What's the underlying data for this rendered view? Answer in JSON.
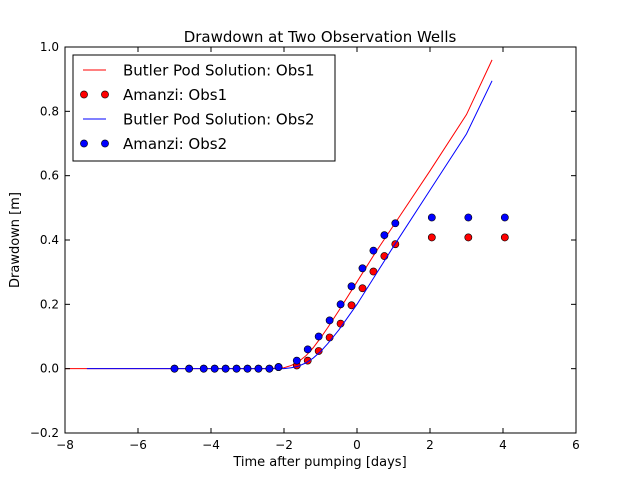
{
  "chart_data": {
    "type": "line",
    "title": "Drawdown at Two Observation Wells",
    "xlabel": "Time after pumping [days]",
    "ylabel": "Drawdown [m]",
    "xlim": [
      -8,
      6
    ],
    "ylim": [
      -0.2,
      1.0
    ],
    "x_ticks": [
      -8,
      -6,
      -4,
      -2,
      0,
      2,
      4,
      6
    ],
    "x_tick_labels": [
      "−8",
      "−6",
      "−4",
      "−2",
      "0",
      "2",
      "4",
      "6"
    ],
    "y_ticks": [
      -0.2,
      0.0,
      0.2,
      0.4,
      0.6,
      0.8,
      1.0
    ],
    "y_tick_labels": [
      "−0.2",
      "0.0",
      "0.2",
      "0.4",
      "0.6",
      "0.8",
      "1.0"
    ],
    "grid": false,
    "legend_position": "top-left",
    "series": [
      {
        "name": "Butler Pod Solution: Obs1",
        "kind": "line",
        "color": "#ff0000",
        "x": [
          -8.0,
          -4.0,
          -2.5,
          -2.0,
          -1.8,
          -1.6,
          -1.4,
          -1.2,
          -1.0,
          -0.8,
          -0.5,
          0.0,
          0.5,
          1.0,
          2.0,
          3.0,
          3.7
        ],
        "y": [
          0.0,
          0.0,
          0.0,
          0.003,
          0.01,
          0.022,
          0.04,
          0.065,
          0.095,
          0.128,
          0.18,
          0.27,
          0.36,
          0.445,
          0.615,
          0.79,
          0.96
        ]
      },
      {
        "name": "Amanzi: Obs1",
        "kind": "scatter",
        "color": "#ff0000",
        "x": [
          -5.0,
          -4.6,
          -4.2,
          -3.9,
          -3.6,
          -3.3,
          -3.0,
          -2.7,
          -2.4,
          -2.15,
          -1.65,
          -1.35,
          -1.05,
          -0.75,
          -0.45,
          -0.15,
          0.15,
          0.45,
          0.75,
          1.05,
          2.05,
          3.05,
          4.05
        ],
        "y": [
          0.0,
          0.0,
          0.0,
          0.0,
          0.0,
          0.0,
          0.0,
          0.0,
          0.0,
          0.005,
          0.01,
          0.025,
          0.055,
          0.097,
          0.14,
          0.197,
          0.25,
          0.302,
          0.35,
          0.387,
          0.408,
          0.408,
          0.408
        ]
      },
      {
        "name": "Butler Pod Solution: Obs2",
        "kind": "line",
        "color": "#0000ff",
        "x": [
          -7.4,
          -4.0,
          -2.5,
          -2.0,
          -1.8,
          -1.6,
          -1.4,
          -1.2,
          -1.0,
          -0.8,
          -0.5,
          0.0,
          0.5,
          1.0,
          2.0,
          3.0,
          3.7
        ],
        "y": [
          0.0,
          0.0,
          0.0,
          0.0,
          0.003,
          0.008,
          0.018,
          0.033,
          0.053,
          0.078,
          0.12,
          0.2,
          0.29,
          0.38,
          0.555,
          0.73,
          0.895
        ]
      },
      {
        "name": "Amanzi: Obs2",
        "kind": "scatter",
        "color": "#0000ff",
        "x": [
          -5.0,
          -4.6,
          -4.2,
          -3.9,
          -3.6,
          -3.3,
          -3.0,
          -2.7,
          -2.4,
          -2.15,
          -1.65,
          -1.35,
          -1.05,
          -0.75,
          -0.45,
          -0.15,
          0.15,
          0.45,
          0.75,
          1.05,
          2.05,
          3.05,
          4.05
        ],
        "y": [
          0.0,
          0.0,
          0.0,
          0.0,
          0.0,
          0.0,
          0.0,
          0.0,
          0.0,
          0.005,
          0.025,
          0.06,
          0.1,
          0.15,
          0.2,
          0.256,
          0.312,
          0.367,
          0.415,
          0.452,
          0.47,
          0.47,
          0.47
        ]
      }
    ]
  }
}
